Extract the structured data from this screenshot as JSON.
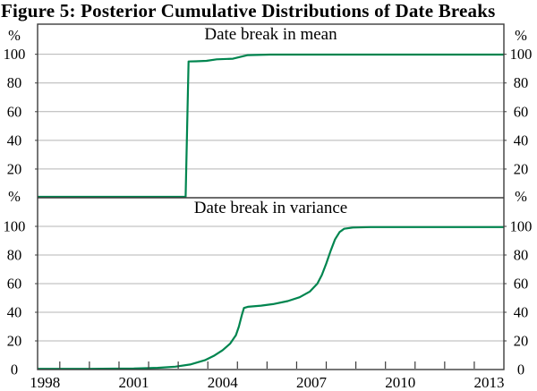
{
  "figure_title": "Figure 5: Posterior Cumulative Distributions of Date Breaks",
  "colors": {
    "line": "#00854F",
    "grid": "#b4b4b4",
    "axis": "#3c3c3c",
    "text": "#000000"
  },
  "x_axis": {
    "range": [
      1998.25,
      2014.0
    ],
    "tick_years": [
      1999,
      2000,
      2001,
      2002,
      2003,
      2004,
      2005,
      2006,
      2007,
      2008,
      2009,
      2010,
      2011,
      2012,
      2013
    ],
    "labels": [
      {
        "text": "1998",
        "year": 1998.5
      },
      {
        "text": "2001",
        "year": 2001.5
      },
      {
        "text": "2004",
        "year": 2004.5
      },
      {
        "text": "2007",
        "year": 2007.5
      },
      {
        "text": "2010",
        "year": 2010.5
      },
      {
        "text": "2013",
        "year": 2013.5
      }
    ]
  },
  "chart_data": [
    {
      "type": "line",
      "title": "Date break in mean",
      "unit": "%",
      "ylim": [
        0,
        121
      ],
      "yticks": [
        20,
        40,
        60,
        80,
        100
      ],
      "show_zero_label": false,
      "grid": true,
      "series": [
        {
          "name": "posterior-cdf-mean-break",
          "points": [
            [
              1998.25,
              0.6
            ],
            [
              2003.25,
              0.6
            ],
            [
              2003.35,
              95.0
            ],
            [
              2003.6,
              95.1
            ],
            [
              2003.95,
              95.4
            ],
            [
              2004.3,
              96.5
            ],
            [
              2004.85,
              96.9
            ],
            [
              2005.1,
              98.2
            ],
            [
              2005.35,
              99.4
            ],
            [
              2006.1,
              99.8
            ],
            [
              2014.0,
              99.8
            ]
          ]
        }
      ]
    },
    {
      "type": "line",
      "title": "Date break in variance",
      "unit": "%",
      "ylim": [
        0,
        120
      ],
      "yticks": [
        20,
        40,
        60,
        80,
        100
      ],
      "show_zero_label": true,
      "grid": true,
      "series": [
        {
          "name": "posterior-cdf-variance-break",
          "points": [
            [
              1998.25,
              0.5
            ],
            [
              2000.0,
              0.5
            ],
            [
              2001.5,
              0.7
            ],
            [
              2002.3,
              1.2
            ],
            [
              2002.9,
              2.0
            ],
            [
              2003.4,
              3.5
            ],
            [
              2003.9,
              6.5
            ],
            [
              2004.2,
              9.5
            ],
            [
              2004.5,
              13.5
            ],
            [
              2004.75,
              18.0
            ],
            [
              2004.95,
              24.0
            ],
            [
              2005.05,
              30.0
            ],
            [
              2005.15,
              38.0
            ],
            [
              2005.22,
              43.0
            ],
            [
              2005.35,
              43.8
            ],
            [
              2005.8,
              44.6
            ],
            [
              2006.2,
              45.7
            ],
            [
              2006.7,
              47.8
            ],
            [
              2007.1,
              50.5
            ],
            [
              2007.45,
              54.5
            ],
            [
              2007.7,
              60.0
            ],
            [
              2007.85,
              66.0
            ],
            [
              2008.0,
              74.0
            ],
            [
              2008.15,
              83.0
            ],
            [
              2008.3,
              91.0
            ],
            [
              2008.45,
              96.0
            ],
            [
              2008.6,
              98.3
            ],
            [
              2008.9,
              99.2
            ],
            [
              2009.5,
              99.5
            ],
            [
              2014.0,
              99.5
            ]
          ]
        }
      ]
    }
  ]
}
